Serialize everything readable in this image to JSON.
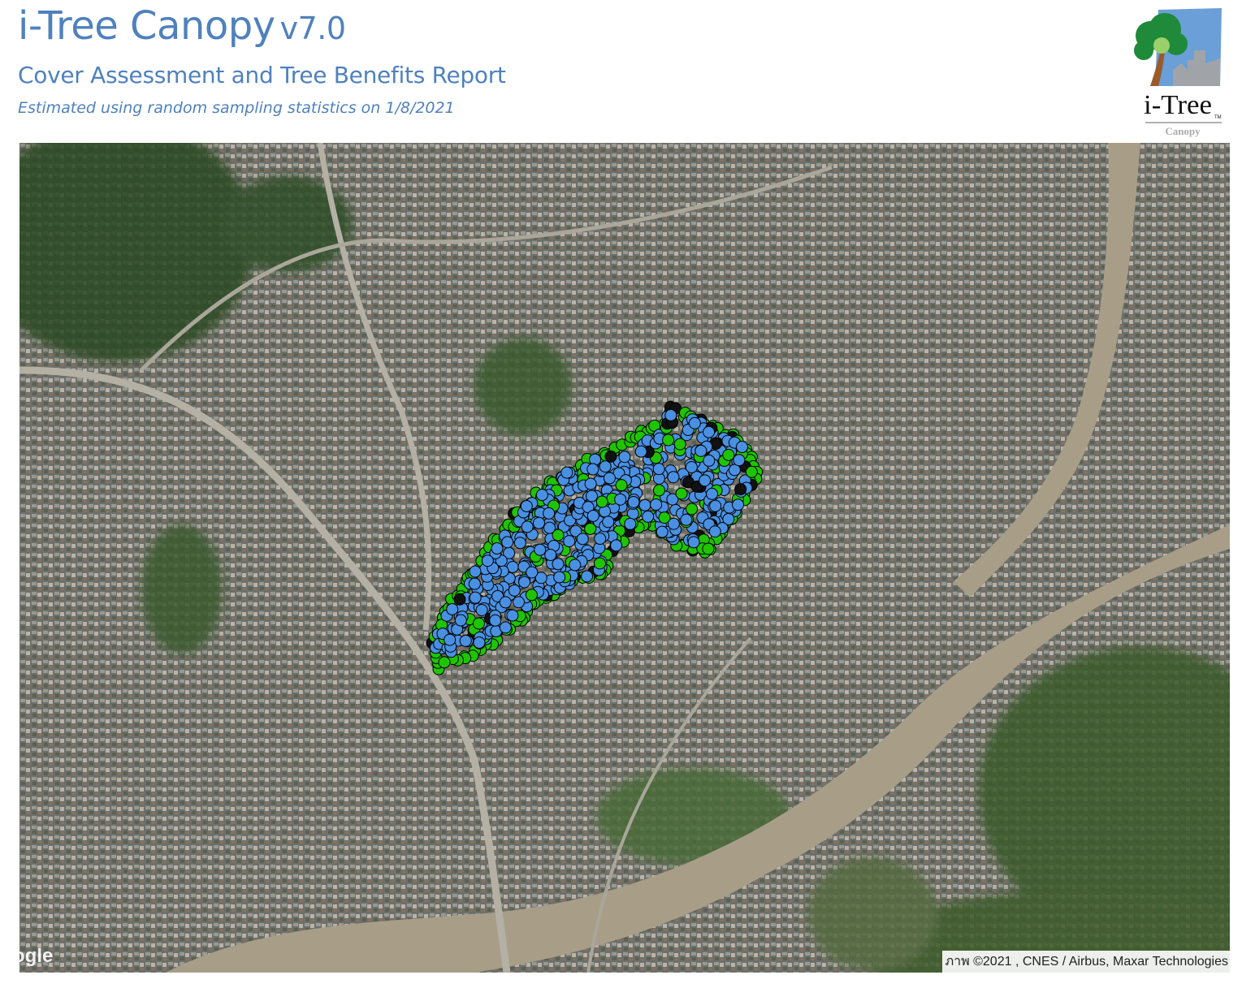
{
  "header": {
    "app_name": "i-Tree Canopy",
    "version": "v7.0",
    "report_title": "Cover Assessment and Tree Benefits Report",
    "estimate_note": "Estimated using random sampling statistics on 1/8/2021"
  },
  "logo": {
    "wordmark": "i-Tree",
    "trademark": "TM",
    "product": "Canopy"
  },
  "map": {
    "provider_logo": "ogle",
    "attribution": "ภาพ ©2021 , CNES / Airbus, Maxar Technologies",
    "boundary_color": "#e02020",
    "point_colors": {
      "tree": "#1fc400",
      "non_tree": "#4a90e2",
      "other": "#111111"
    }
  },
  "colors": {
    "heading": "#4f81bd"
  }
}
